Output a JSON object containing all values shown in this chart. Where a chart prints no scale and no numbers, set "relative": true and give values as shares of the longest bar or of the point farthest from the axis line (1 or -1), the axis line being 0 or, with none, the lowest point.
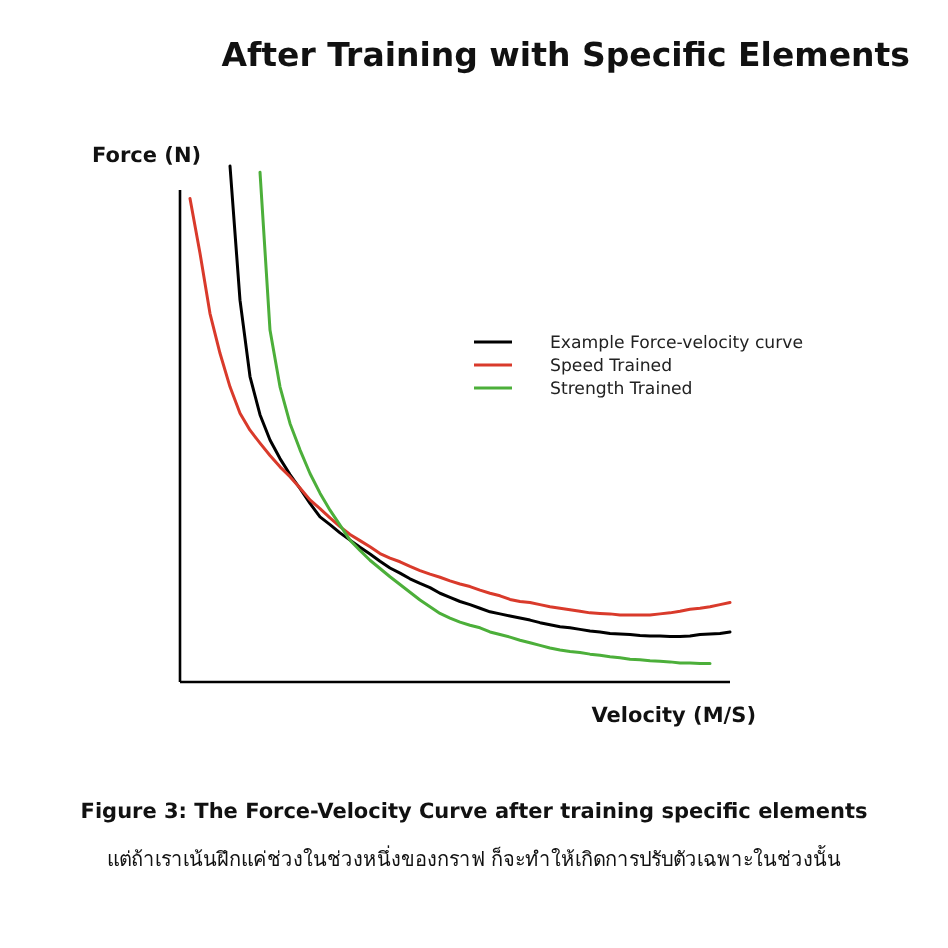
{
  "chart_data": {
    "type": "line",
    "title": "After Training with Specific Elements",
    "xlabel": "Velocity (M/S)",
    "ylabel": "Force (N)",
    "relative": true,
    "legend": "top right",
    "categories": [
      null,
      null,
      null,
      null,
      null,
      null,
      null,
      null,
      null,
      null,
      null,
      null,
      null,
      null,
      null,
      null,
      null,
      null,
      null,
      null,
      null,
      null,
      null,
      null,
      null,
      null,
      null,
      null,
      null,
      null,
      null,
      null,
      null,
      null,
      null,
      null,
      null,
      null,
      null,
      null,
      null,
      null,
      null,
      null,
      null,
      null,
      null,
      null,
      null,
      null,
      null,
      null,
      null,
      null,
      null,
      null
    ],
    "series": [
      {
        "name": "Example Force-velocity curve",
        "color": "#000000",
        "values": [
          null,
          null,
          null,
          null,
          null,
          1.0,
          0.74,
          0.592,
          0.518,
          0.469,
          0.433,
          0.402,
          0.375,
          0.346,
          0.32,
          0.305,
          0.289,
          0.275,
          0.261,
          0.248,
          0.234,
          0.221,
          0.211,
          0.2,
          0.191,
          0.183,
          0.172,
          0.164,
          0.156,
          0.15,
          0.143,
          0.136,
          0.132,
          0.128,
          0.124,
          0.12,
          0.115,
          0.111,
          0.107,
          0.105,
          0.102,
          0.099,
          0.097,
          0.094,
          0.093,
          0.092,
          0.09,
          0.089,
          0.089,
          0.088,
          0.088,
          0.089,
          0.092,
          0.093,
          0.094,
          0.097
        ]
      },
      {
        "name": "Speed Trained",
        "color": "#d93a2b",
        "values": [
          null,
          0.937,
          0.831,
          0.714,
          0.637,
          0.572,
          0.521,
          0.488,
          0.463,
          0.439,
          0.417,
          0.398,
          0.376,
          0.353,
          0.336,
          0.318,
          0.301,
          0.286,
          0.274,
          0.262,
          0.249,
          0.24,
          0.233,
          0.224,
          0.216,
          0.209,
          0.203,
          0.196,
          0.19,
          0.185,
          0.178,
          0.172,
          0.167,
          0.16,
          0.156,
          0.154,
          0.15,
          0.146,
          0.143,
          0.14,
          0.137,
          0.134,
          0.133,
          0.132,
          0.13,
          0.13,
          0.13,
          0.13,
          0.132,
          0.134,
          0.137,
          0.141,
          0.143,
          0.146,
          0.15,
          0.154
        ]
      },
      {
        "name": "Strength Trained",
        "color": "#4caf3a",
        "values": [
          null,
          null,
          null,
          null,
          null,
          null,
          null,
          null,
          0.988,
          0.682,
          0.572,
          0.501,
          0.45,
          0.404,
          0.366,
          0.333,
          0.304,
          0.275,
          0.255,
          0.236,
          0.22,
          0.204,
          0.189,
          0.174,
          0.159,
          0.146,
          0.133,
          0.124,
          0.116,
          0.11,
          0.105,
          0.097,
          0.092,
          0.087,
          0.081,
          0.076,
          0.071,
          0.066,
          0.062,
          0.059,
          0.057,
          0.054,
          0.052,
          0.049,
          0.047,
          0.044,
          0.043,
          0.041,
          0.04,
          0.039,
          0.037,
          0.037,
          0.036,
          0.036,
          null,
          null
        ]
      }
    ],
    "annotations": [
      "Figure 3: The Force-Velocity Curve after training specific elements",
      "แต่ถ้าเราเน้นฝึกแค่ช่วงในช่วงหนึ่งของกราฟ ก็จะทำให้เกิดการปรับตัวเฉพาะในช่วงนั้น"
    ]
  }
}
